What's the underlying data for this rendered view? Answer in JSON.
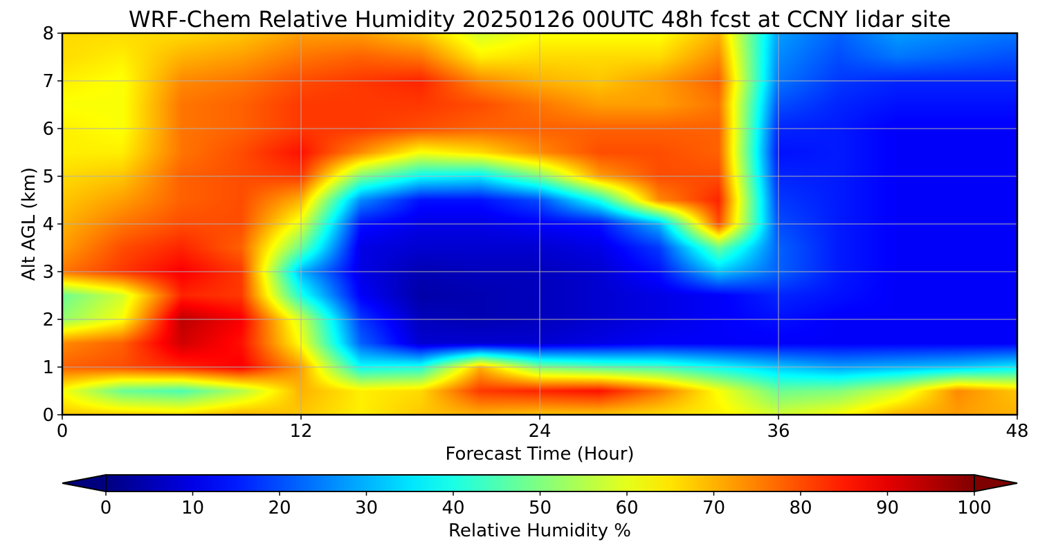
{
  "chart_data": {
    "type": "heatmap",
    "title": "WRF-Chem Relative Humidity 20250126 00UTC 48h fcst at CCNY lidar site",
    "xlabel": "Forecast Time (Hour)",
    "ylabel": "Alt AGL (km)",
    "xlim": [
      0,
      48
    ],
    "ylim": [
      0,
      8
    ],
    "x_ticks": [
      0,
      12,
      24,
      36,
      48
    ],
    "y_ticks": [
      0,
      1,
      2,
      3,
      4,
      5,
      6,
      7,
      8
    ],
    "grid": true,
    "colormap": "jet",
    "x": [
      0,
      3,
      6,
      9,
      12,
      15,
      18,
      21,
      24,
      27,
      30,
      33,
      36,
      39,
      42,
      45,
      48
    ],
    "y": [
      0,
      0.5,
      1,
      1.5,
      2,
      2.5,
      3,
      3.5,
      4,
      4.5,
      5,
      5.5,
      6,
      6.5,
      7,
      7.5,
      8
    ],
    "z": [
      [
        68,
        67,
        66,
        70,
        68,
        64,
        68,
        70,
        68,
        68,
        66,
        64,
        58,
        62,
        70,
        72,
        70
      ],
      [
        62,
        48,
        45,
        55,
        70,
        64,
        66,
        82,
        84,
        86,
        76,
        62,
        48,
        50,
        58,
        74,
        68
      ],
      [
        78,
        80,
        84,
        88,
        72,
        38,
        40,
        70,
        50,
        46,
        44,
        38,
        32,
        28,
        30,
        32,
        36
      ],
      [
        74,
        78,
        92,
        86,
        62,
        22,
        8,
        8,
        8,
        10,
        12,
        12,
        12,
        12,
        12,
        12,
        12
      ],
      [
        52,
        62,
        94,
        88,
        58,
        18,
        6,
        5,
        6,
        8,
        10,
        12,
        14,
        12,
        12,
        12,
        12
      ],
      [
        48,
        58,
        84,
        82,
        40,
        12,
        4,
        5,
        6,
        8,
        10,
        12,
        16,
        14,
        12,
        12,
        12
      ],
      [
        76,
        82,
        88,
        82,
        30,
        10,
        5,
        6,
        6,
        8,
        14,
        32,
        22,
        15,
        12,
        12,
        12
      ],
      [
        72,
        80,
        84,
        78,
        48,
        10,
        8,
        8,
        8,
        10,
        18,
        48,
        22,
        15,
        12,
        12,
        12
      ],
      [
        70,
        76,
        80,
        80,
        60,
        14,
        10,
        10,
        12,
        14,
        30,
        80,
        20,
        15,
        12,
        12,
        12
      ],
      [
        68,
        72,
        78,
        80,
        70,
        26,
        14,
        14,
        20,
        40,
        74,
        84,
        18,
        15,
        12,
        12,
        12
      ],
      [
        66,
        68,
        78,
        80,
        82,
        50,
        38,
        36,
        50,
        72,
        80,
        80,
        16,
        15,
        12,
        12,
        12
      ],
      [
        64,
        64,
        76,
        80,
        86,
        74,
        62,
        66,
        74,
        80,
        80,
        78,
        14,
        15,
        12,
        12,
        12
      ],
      [
        64,
        62,
        76,
        78,
        82,
        82,
        80,
        78,
        78,
        78,
        78,
        78,
        16,
        15,
        12,
        12,
        12
      ],
      [
        62,
        62,
        76,
        78,
        82,
        82,
        82,
        80,
        76,
        72,
        72,
        76,
        20,
        16,
        14,
        14,
        14
      ],
      [
        64,
        62,
        74,
        76,
        80,
        82,
        84,
        74,
        70,
        68,
        72,
        78,
        24,
        18,
        16,
        16,
        16
      ],
      [
        66,
        64,
        70,
        72,
        76,
        78,
        76,
        64,
        66,
        66,
        66,
        74,
        26,
        20,
        24,
        22,
        20
      ],
      [
        66,
        66,
        66,
        68,
        72,
        72,
        68,
        58,
        62,
        62,
        62,
        70,
        28,
        22,
        28,
        26,
        24
      ]
    ],
    "colorbar": {
      "label": "Relative Humidity %",
      "min": 0,
      "max": 100,
      "ticks": [
        0,
        10,
        20,
        30,
        40,
        50,
        60,
        70,
        80,
        90,
        100
      ],
      "extend": "both"
    }
  }
}
